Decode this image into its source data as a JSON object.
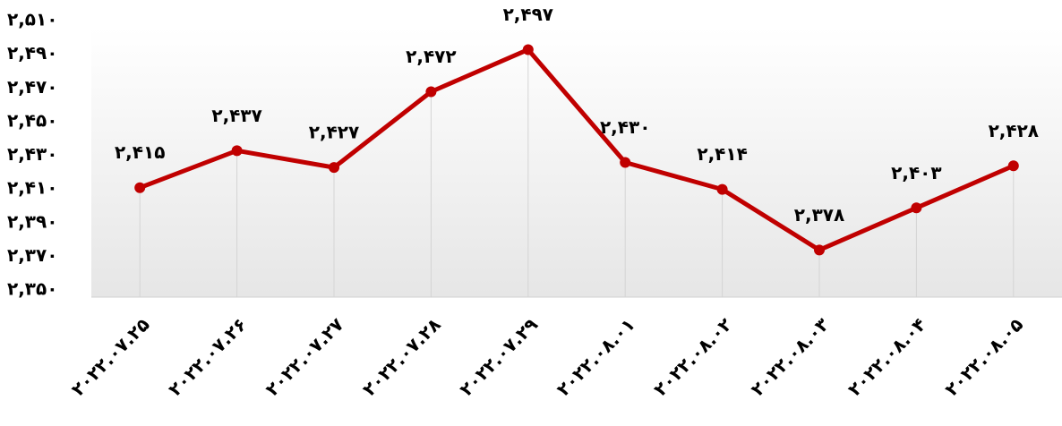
{
  "chart_data": {
    "type": "line",
    "categories": [
      "۲۰۲۲.۰۷.۲۵",
      "۲۰۲۲.۰۷.۲۶",
      "۲۰۲۲.۰۷.۲۷",
      "۲۰۲۲.۰۷.۲۸",
      "۲۰۲۲.۰۷.۲۹",
      "۲۰۲۲.۰۸.۰۱",
      "۲۰۲۲.۰۸.۰۲",
      "۲۰۲۲.۰۸.۰۳",
      "۲۰۲۲.۰۸.۰۴",
      "۲۰۲۲.۰۸.۰۵"
    ],
    "values": [
      2415,
      2437,
      2427,
      2472,
      2497,
      2430,
      2414,
      2378,
      2403,
      2428
    ],
    "value_labels": [
      "۲,۴۱۵",
      "۲,۴۳۷",
      "۲,۴۲۷",
      "۲,۴۷۲",
      "۲,۴۹۷",
      "۲,۴۳۰",
      "۲,۴۱۴",
      "۲,۳۷۸",
      "۲,۴۰۳",
      "۲,۴۲۸"
    ],
    "color": "#c00000",
    "ylim": [
      2350,
      2510
    ],
    "yticks": [
      {
        "value": 2350,
        "label": "۲,۳۵۰"
      },
      {
        "value": 2370,
        "label": "۲,۳۷۰"
      },
      {
        "value": 2390,
        "label": "۲,۳۹۰"
      },
      {
        "value": 2410,
        "label": "۲,۴۱۰"
      },
      {
        "value": 2430,
        "label": "۲,۴۳۰"
      },
      {
        "value": 2450,
        "label": "۲,۴۵۰"
      },
      {
        "value": 2470,
        "label": "۲,۴۷۰"
      },
      {
        "value": 2490,
        "label": "۲,۴۹۰"
      },
      {
        "value": 2510,
        "label": "۲,۵۱۰"
      }
    ],
    "grid": true
  }
}
